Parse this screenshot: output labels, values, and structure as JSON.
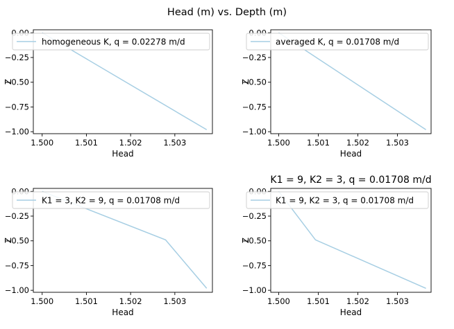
{
  "suptitle": "Head (m) vs. Depth (m)",
  "chart_data": [
    {
      "type": "line",
      "title": "",
      "xlabel": "Head",
      "ylabel": "Z",
      "xlim": [
        1.4998,
        1.50385
      ],
      "ylim": [
        -1.02,
        0.03
      ],
      "xticks": [
        "1.500",
        "1.501",
        "1.502",
        "1.503"
      ],
      "xtick_values": [
        1.5,
        1.501,
        1.502,
        1.503
      ],
      "yticks": [
        "0.00",
        "−0.25",
        "−0.50",
        "−0.75",
        "−1.00"
      ],
      "ytick_values": [
        0.0,
        -0.25,
        -0.5,
        -0.75,
        -1.0
      ],
      "legend_loc": "upper-right",
      "series": [
        {
          "name": "homogeneous K, q = 0.02278 m/d",
          "color": "#a6cee3",
          "x": [
            1.5,
            1.50372
          ],
          "y": [
            0.0,
            -0.98
          ]
        }
      ]
    },
    {
      "type": "line",
      "title": "",
      "xlabel": "Head",
      "ylabel": "Z",
      "xlim": [
        1.4998,
        1.50385
      ],
      "ylim": [
        -1.02,
        0.03
      ],
      "xticks": [
        "1.500",
        "1.501",
        "1.502",
        "1.503"
      ],
      "xtick_values": [
        1.5,
        1.501,
        1.502,
        1.503
      ],
      "yticks": [
        "0.00",
        "−0.25",
        "−0.50",
        "−0.75",
        "−1.00"
      ],
      "ytick_values": [
        0.0,
        -0.25,
        -0.5,
        -0.75,
        -1.0
      ],
      "legend_loc": "upper-right",
      "series": [
        {
          "name": "averaged K, q = 0.01708 m/d",
          "color": "#a6cee3",
          "x": [
            1.5,
            1.50372
          ],
          "y": [
            0.0,
            -0.98
          ]
        }
      ]
    },
    {
      "type": "line",
      "title": "",
      "xlabel": "Head",
      "ylabel": "Z",
      "xlim": [
        1.4998,
        1.50385
      ],
      "ylim": [
        -1.02,
        0.03
      ],
      "xticks": [
        "1.500",
        "1.501",
        "1.502",
        "1.503"
      ],
      "xtick_values": [
        1.5,
        1.501,
        1.502,
        1.503
      ],
      "yticks": [
        "0.00",
        "−0.25",
        "−0.50",
        "−0.75",
        "−1.00"
      ],
      "ytick_values": [
        0.0,
        -0.25,
        -0.5,
        -0.75,
        -1.0
      ],
      "legend_loc": "upper-right",
      "series": [
        {
          "name": "K1 = 3, K2 = 9, q = 0.01708 m/d",
          "color": "#a6cee3",
          "x": [
            1.5,
            1.50279,
            1.50372
          ],
          "y": [
            0.0,
            -0.49,
            -0.98
          ]
        }
      ]
    },
    {
      "type": "line",
      "title": "K1 = 9, K2 = 3, q = 0.01708 m/d",
      "xlabel": "Head",
      "ylabel": "Z",
      "xlim": [
        1.4998,
        1.50385
      ],
      "ylim": [
        -1.02,
        0.03
      ],
      "xticks": [
        "1.500",
        "1.501",
        "1.502",
        "1.503"
      ],
      "xtick_values": [
        1.5,
        1.501,
        1.502,
        1.503
      ],
      "yticks": [
        "0.00",
        "−0.25",
        "−0.50",
        "−0.75",
        "−1.00"
      ],
      "ytick_values": [
        0.0,
        -0.25,
        -0.5,
        -0.75,
        -1.0
      ],
      "legend_loc": "upper-right",
      "series": [
        {
          "name": "K1 = 9, K2 = 3, q = 0.01708 m/d",
          "color": "#a6cee3",
          "x": [
            1.5,
            1.50093,
            1.50372
          ],
          "y": [
            0.0,
            -0.49,
            -0.98
          ]
        }
      ]
    }
  ]
}
